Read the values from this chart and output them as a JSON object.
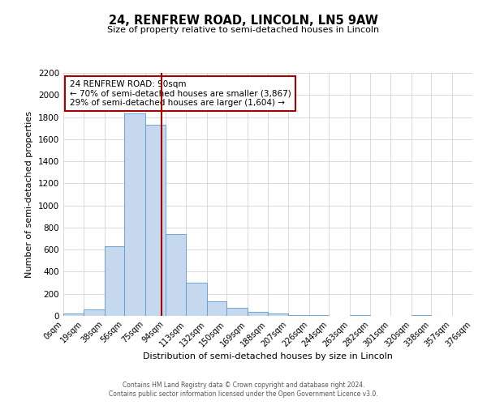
{
  "title": "24, RENFREW ROAD, LINCOLN, LN5 9AW",
  "subtitle": "Size of property relative to semi-detached houses in Lincoln",
  "xlabel": "Distribution of semi-detached houses by size in Lincoln",
  "ylabel": "Number of semi-detached properties",
  "bin_edges": [
    0,
    19,
    38,
    56,
    75,
    94,
    113,
    132,
    150,
    169,
    188,
    207,
    226,
    244,
    263,
    282,
    301,
    320,
    338,
    357,
    376
  ],
  "bin_counts": [
    20,
    60,
    630,
    1830,
    1730,
    740,
    300,
    130,
    70,
    40,
    20,
    5,
    5,
    0,
    5,
    0,
    0,
    5,
    0,
    0
  ],
  "property_size": 90,
  "annotation_title": "24 RENFREW ROAD: 90sqm",
  "annotation_line1": "← 70% of semi-detached houses are smaller (3,867)",
  "annotation_line2": "29% of semi-detached houses are larger (1,604) →",
  "bar_facecolor": "#c5d8ed",
  "bar_edgecolor": "#5b9bd5",
  "vline_color": "#aa0000",
  "annotation_box_edgecolor": "#aa0000",
  "grid_color": "#cccccc",
  "background_color": "#ffffff",
  "footer_line1": "Contains HM Land Registry data © Crown copyright and database right 2024.",
  "footer_line2": "Contains public sector information licensed under the Open Government Licence v3.0.",
  "ylim": [
    0,
    2200
  ],
  "yticks": [
    0,
    200,
    400,
    600,
    800,
    1000,
    1200,
    1400,
    1600,
    1800,
    2000,
    2200
  ]
}
